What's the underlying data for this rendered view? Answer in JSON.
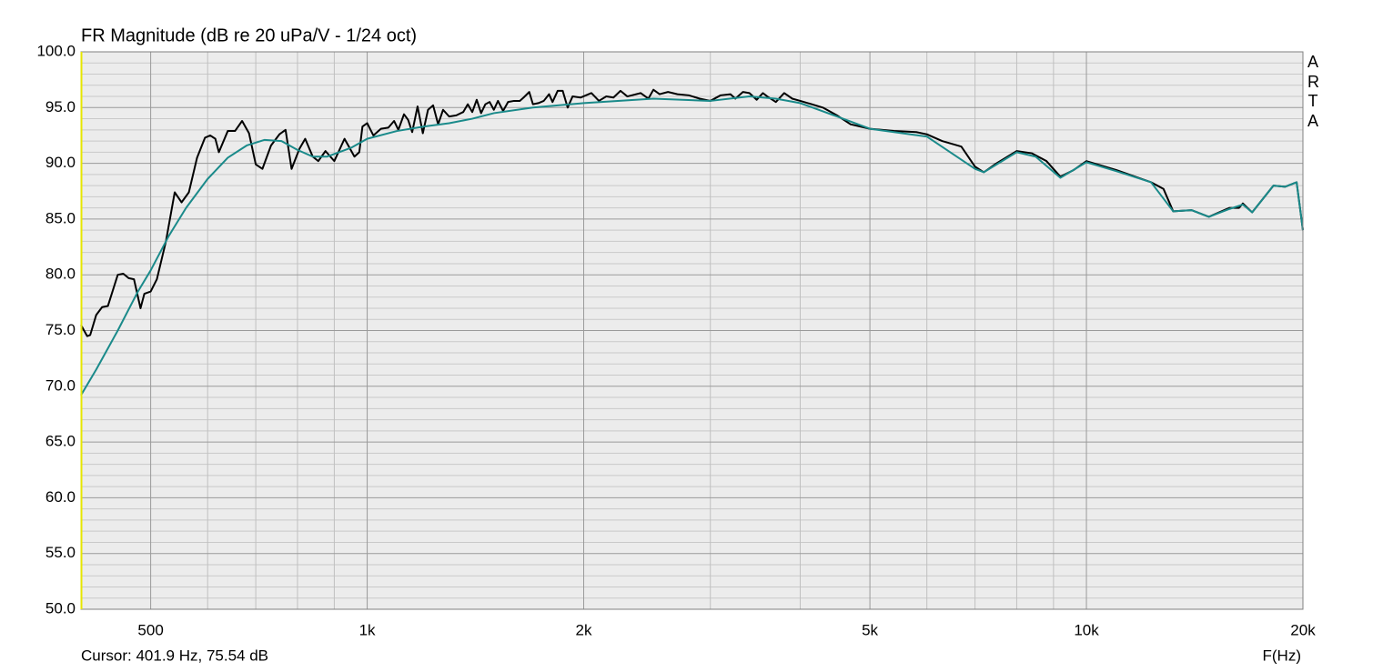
{
  "chart_data": {
    "type": "line",
    "title": "FR Magnitude (dB re 20 uPa/V - 1/24 oct)",
    "watermark": "ARTA",
    "cursor_text": "Cursor: 401.9 Hz, 75.54 dB",
    "x_label": "F(Hz)",
    "log_x": true,
    "grid": true,
    "background": "#ececec",
    "xlim": [
      400,
      20000
    ],
    "xticks": [
      500,
      {
        "value": 1000,
        "label": "1k"
      },
      {
        "value": 2000,
        "label": "2k"
      },
      {
        "value": 5000,
        "label": "5k"
      },
      {
        "value": 10000,
        "label": "10k"
      },
      {
        "value": 20000,
        "label": "20k"
      }
    ],
    "xminor": [
      600,
      700,
      800,
      900,
      3000,
      4000,
      6000,
      7000,
      8000,
      9000
    ],
    "ylim": [
      50,
      100
    ],
    "yticks": [
      {
        "value": 50,
        "label": "50.0"
      },
      {
        "value": 55,
        "label": "55.0"
      },
      {
        "value": 60,
        "label": "60.0"
      },
      {
        "value": 65,
        "label": "65.0"
      },
      {
        "value": 70,
        "label": "70.0"
      },
      {
        "value": 75,
        "label": "75.0"
      },
      {
        "value": 80,
        "label": "80.0"
      },
      {
        "value": 85,
        "label": "85.0"
      },
      {
        "value": 90,
        "label": "90.0"
      },
      {
        "value": 95,
        "label": "95.0"
      },
      {
        "value": 100,
        "label": "100.0"
      }
    ],
    "yminor": [
      51,
      52,
      53,
      54,
      56,
      57,
      58,
      59,
      61,
      62,
      63,
      64,
      66,
      67,
      68,
      69,
      71,
      72,
      73,
      74,
      76,
      77,
      78,
      79,
      81,
      82,
      83,
      84,
      86,
      87,
      88,
      89,
      91,
      92,
      93,
      94,
      96,
      97,
      98,
      99
    ],
    "series": [
      {
        "color": "#000000",
        "x": [
          400,
          408,
          412,
          420,
          428,
          436,
          450,
          458,
          466,
          474,
          484,
          490,
          500,
          510,
          525,
          540,
          552,
          565,
          580,
          595,
          605,
          615,
          622,
          640,
          655,
          670,
          685,
          700,
          715,
          735,
          755,
          770,
          785,
          805,
          820,
          840,
          855,
          875,
          900,
          930,
          960,
          975,
          985,
          1000,
          1020,
          1045,
          1070,
          1090,
          1105,
          1125,
          1140,
          1155,
          1175,
          1195,
          1215,
          1235,
          1255,
          1275,
          1300,
          1330,
          1360,
          1380,
          1400,
          1420,
          1440,
          1460,
          1480,
          1500,
          1520,
          1545,
          1570,
          1600,
          1630,
          1650,
          1680,
          1700,
          1730,
          1760,
          1790,
          1810,
          1840,
          1870,
          1900,
          1930,
          1980,
          2050,
          2100,
          2150,
          2200,
          2250,
          2300,
          2400,
          2460,
          2500,
          2550,
          2620,
          2700,
          2800,
          2900,
          3000,
          3100,
          3200,
          3250,
          3330,
          3400,
          3480,
          3550,
          3600,
          3700,
          3800,
          3900,
          4000,
          4100,
          4300,
          4500,
          4700,
          5000,
          5400,
          5800,
          6000,
          6300,
          6700,
          7000,
          7200,
          7500,
          8000,
          8400,
          8800,
          9200,
          9600,
          10000,
          11000,
          12300,
          12800,
          13200,
          14000,
          14800,
          15800,
          16300,
          16500,
          17000,
          18200,
          18900,
          19600,
          20000
        ],
        "values": [
          75.5,
          74.5,
          74.6,
          76.4,
          77.1,
          77.2,
          80.0,
          80.1,
          79.7,
          79.6,
          77.0,
          78.3,
          78.5,
          79.6,
          83.0,
          87.4,
          86.5,
          87.4,
          90.5,
          92.3,
          92.5,
          92.2,
          91.0,
          92.9,
          92.9,
          93.8,
          92.7,
          89.9,
          89.5,
          91.6,
          92.6,
          93.0,
          89.5,
          91.3,
          92.2,
          90.6,
          90.2,
          91.1,
          90.2,
          92.2,
          90.6,
          91.0,
          93.3,
          93.6,
          92.5,
          93.1,
          93.2,
          93.8,
          93.0,
          94.4,
          93.9,
          92.8,
          95.1,
          92.7,
          94.8,
          95.2,
          93.5,
          94.8,
          94.2,
          94.3,
          94.6,
          95.3,
          94.6,
          95.7,
          94.5,
          95.3,
          95.5,
          94.8,
          95.6,
          94.7,
          95.5,
          95.6,
          95.6,
          95.9,
          96.4,
          95.3,
          95.4,
          95.6,
          96.2,
          95.5,
          96.5,
          96.5,
          95.0,
          96.0,
          95.9,
          96.3,
          95.6,
          96.0,
          95.9,
          96.5,
          96.0,
          96.3,
          95.8,
          96.6,
          96.2,
          96.4,
          96.2,
          96.1,
          95.8,
          95.6,
          96.1,
          96.2,
          95.8,
          96.4,
          96.3,
          95.7,
          96.3,
          96.0,
          95.5,
          96.3,
          95.8,
          95.6,
          95.4,
          95.0,
          94.3,
          93.5,
          93.1,
          92.9,
          92.8,
          92.6,
          92.0,
          91.5,
          89.7,
          89.2,
          90.0,
          91.1,
          90.9,
          90.2,
          88.8,
          89.4,
          90.2,
          89.4,
          88.3,
          87.7,
          85.7,
          85.8,
          85.2,
          86.0,
          86.0,
          86.4,
          85.6,
          88.0,
          87.9,
          88.3,
          84.0
        ]
      },
      {
        "color": "#1a8a8a",
        "x": [
          400,
          420,
          450,
          480,
          500,
          530,
          560,
          600,
          640,
          680,
          720,
          760,
          800,
          840,
          880,
          950,
          1000,
          1100,
          1200,
          1300,
          1400,
          1500,
          1700,
          2000,
          2500,
          3000,
          3400,
          3700,
          4000,
          4500,
          5000,
          6000,
          7000,
          7200,
          8000,
          8500,
          9200,
          10000,
          11000,
          12300,
          13200,
          14000,
          14800,
          15800,
          16500,
          17000,
          18200,
          18900,
          19600,
          20000
        ],
        "values": [
          69.2,
          71.5,
          75.0,
          78.5,
          80.4,
          83.5,
          86.0,
          88.6,
          90.5,
          91.6,
          92.1,
          92.0,
          91.2,
          90.6,
          90.6,
          91.4,
          92.2,
          92.9,
          93.3,
          93.6,
          94.0,
          94.5,
          95.0,
          95.4,
          95.8,
          95.6,
          96.0,
          95.8,
          95.4,
          94.2,
          93.1,
          92.4,
          89.5,
          89.2,
          91.0,
          90.6,
          88.7,
          90.1,
          89.3,
          88.3,
          85.7,
          85.8,
          85.2,
          85.9,
          86.3,
          85.6,
          88.0,
          87.9,
          88.3,
          84.0
        ]
      }
    ]
  }
}
